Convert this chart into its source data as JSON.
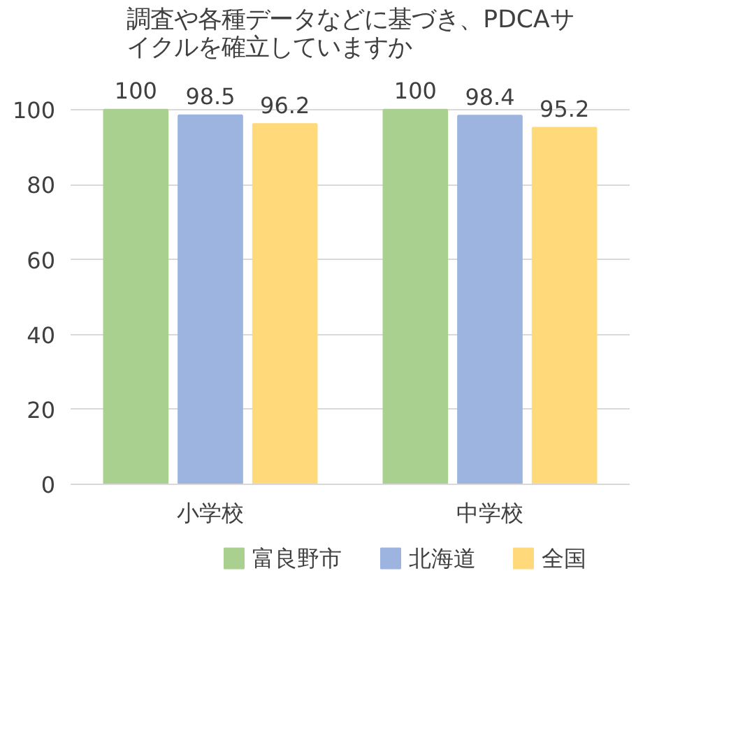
{
  "chart_data": {
    "type": "bar",
    "title": "調査や各種データなどに基づき、PDCAサイクルを確立していますか",
    "categories": [
      "小学校",
      "中学校"
    ],
    "series": [
      {
        "name": "富良野市",
        "color": "#a9d08e",
        "values": [
          100,
          100
        ]
      },
      {
        "name": "北海道",
        "color": "#9db3e0",
        "values": [
          98.5,
          98.4
        ]
      },
      {
        "name": "全国",
        "color": "#ffd97a",
        "values": [
          96.2,
          95.2
        ]
      }
    ],
    "ylim": [
      0,
      100
    ],
    "yticks": [
      0,
      20,
      40,
      60,
      80,
      100
    ],
    "grid": "y",
    "legend": "bottom",
    "data_labels": true
  }
}
